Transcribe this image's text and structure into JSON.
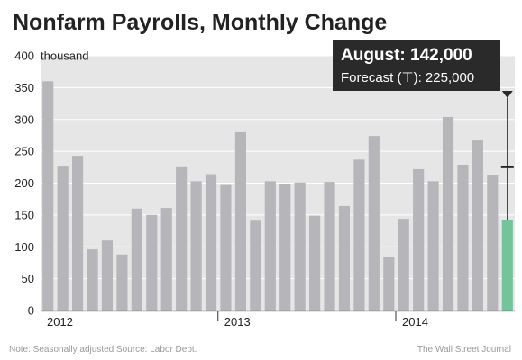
{
  "chart_data": {
    "type": "bar",
    "title": "Nonfarm Payrolls, Monthly Change",
    "ylabel": "",
    "xlabel": "",
    "y_unit_label": "thousand",
    "ylim": [
      0,
      400
    ],
    "yticks": [
      0,
      50,
      100,
      150,
      200,
      250,
      300,
      350,
      400
    ],
    "grid": true,
    "year_labels": [
      {
        "label": "2012",
        "start_index": 0
      },
      {
        "label": "2013",
        "start_index": 12
      },
      {
        "label": "2014",
        "start_index": 24
      }
    ],
    "values": [
      360,
      226,
      243,
      96,
      110,
      88,
      160,
      150,
      161,
      225,
      203,
      214,
      197,
      280,
      141,
      203,
      199,
      201,
      149,
      202,
      164,
      237,
      274,
      84,
      144,
      222,
      203,
      304,
      229,
      267,
      212,
      142
    ],
    "bar_color": "#b6b6ba",
    "highlight_color": "#73c39b",
    "highlight_index": 31,
    "forecast_value": 225,
    "tooltip": {
      "title": "August: 142,000",
      "subtitle": "Forecast (⊤): 225,000"
    },
    "source_note": "Note: Seasonally adjusted  Source: Labor Dept.",
    "publisher": "The Wall Street Journal"
  }
}
